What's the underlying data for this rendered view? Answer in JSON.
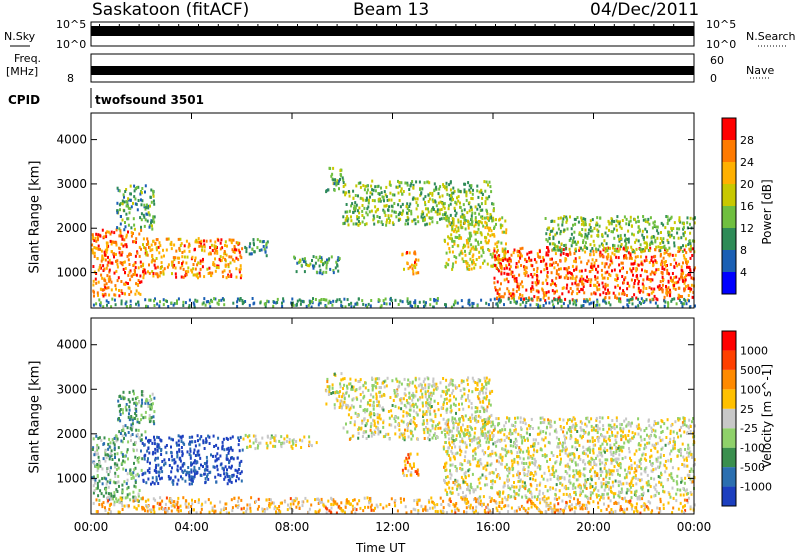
{
  "header": {
    "station": "Saskatoon (fitACF)",
    "beam": "Beam 13",
    "date": "04/Dec/2011"
  },
  "panels": {
    "nsky": {
      "left_label": "N.Sky",
      "right_label": "N.Search",
      "left_ticks": [
        "10^5",
        "10^0"
      ],
      "right_ticks": [
        "10^5",
        "10^0"
      ]
    },
    "freq": {
      "left_label_1": "Freq.",
      "left_label_2": "[MHz]",
      "left_tick": "8",
      "right_label": "Nave",
      "right_ticks": [
        "60",
        "0"
      ]
    },
    "cpid": {
      "label": "CPID",
      "value": "twofsound 3501"
    }
  },
  "colorbars": {
    "power": {
      "title": "Power [dB]",
      "ticks": [
        "28",
        "24",
        "20",
        "16",
        "12",
        "8",
        "4"
      ],
      "colors": [
        "#0000ff",
        "#1a5fb4",
        "#2e8b57",
        "#6fbf3f",
        "#c8c800",
        "#ffb000",
        "#ff7a00",
        "#ff0000"
      ]
    },
    "velocity": {
      "title": "Velocity [m s^-1]",
      "ticks": [
        "1000",
        "500",
        "100",
        "25",
        "-25",
        "-100",
        "-500",
        "-1000"
      ],
      "colors": [
        "#1c3fbf",
        "#2b6fb0",
        "#3a8f4e",
        "#8fd16a",
        "#c8c8c8",
        "#ffc000",
        "#ff8a00",
        "#ff4000",
        "#ff0000"
      ]
    }
  },
  "chart_data": [
    {
      "type": "heatmap",
      "name": "power-panel",
      "ylabel": "Slant Range [km]",
      "yticks": [
        1000,
        2000,
        3000,
        4000
      ],
      "ylim": [
        200,
        4600
      ],
      "xlim": [
        0,
        24
      ],
      "blobs": [
        {
          "t0": 0.0,
          "t1": 2.0,
          "r0": 500,
          "r1": 2000,
          "level": 0.8
        },
        {
          "t0": 2.0,
          "t1": 6.0,
          "r0": 900,
          "r1": 1800,
          "level": 0.75
        },
        {
          "t0": 1.0,
          "t1": 2.5,
          "r0": 2000,
          "r1": 3000,
          "level": 0.35
        },
        {
          "t0": 6.0,
          "t1": 7.0,
          "r0": 1400,
          "r1": 1800,
          "level": 0.3
        },
        {
          "t0": 8.0,
          "t1": 10.0,
          "r0": 1000,
          "r1": 1400,
          "level": 0.35
        },
        {
          "t0": 9.3,
          "t1": 10.0,
          "r0": 2800,
          "r1": 3400,
          "level": 0.4
        },
        {
          "t0": 10.0,
          "t1": 16.0,
          "r0": 2100,
          "r1": 3100,
          "level": 0.45
        },
        {
          "t0": 12.3,
          "t1": 13.0,
          "r0": 1000,
          "r1": 1500,
          "level": 0.75
        },
        {
          "t0": 14.0,
          "t1": 16.5,
          "r0": 1100,
          "r1": 2300,
          "level": 0.55
        },
        {
          "t0": 16.0,
          "t1": 24.0,
          "r0": 400,
          "r1": 1600,
          "level": 0.85
        },
        {
          "t0": 18.0,
          "t1": 24.0,
          "r0": 1500,
          "r1": 2300,
          "level": 0.45
        },
        {
          "t0": 0.0,
          "t1": 24.0,
          "r0": 250,
          "r1": 450,
          "level": 0.3
        }
      ]
    },
    {
      "type": "heatmap",
      "name": "velocity-panel",
      "ylabel": "Slant Range [km]",
      "xlabel": "Time UT",
      "yticks": [
        1000,
        2000,
        3000,
        4000
      ],
      "xticks": [
        "00:00",
        "04:00",
        "08:00",
        "12:00",
        "16:00",
        "20:00",
        "00:00"
      ],
      "ylim": [
        200,
        4600
      ],
      "xlim": [
        0,
        24
      ],
      "blobs": [
        {
          "t0": 0.0,
          "t1": 2.0,
          "r0": 500,
          "r1": 2000,
          "level": 0.35
        },
        {
          "t0": 2.0,
          "t1": 6.0,
          "r0": 900,
          "r1": 2000,
          "level": 0.05
        },
        {
          "t0": 1.0,
          "t1": 2.5,
          "r0": 2000,
          "r1": 3000,
          "level": 0.3
        },
        {
          "t0": 6.0,
          "t1": 9.0,
          "r0": 1700,
          "r1": 2000,
          "level": 0.5
        },
        {
          "t0": 9.3,
          "t1": 10.0,
          "r0": 2600,
          "r1": 3400,
          "level": 0.5
        },
        {
          "t0": 10.0,
          "t1": 16.0,
          "r0": 1900,
          "r1": 3300,
          "level": 0.5
        },
        {
          "t0": 12.3,
          "t1": 13.0,
          "r0": 1000,
          "r1": 1600,
          "level": 0.7
        },
        {
          "t0": 14.0,
          "t1": 24.0,
          "r0": 600,
          "r1": 2400,
          "level": 0.5
        },
        {
          "t0": 0.0,
          "t1": 24.0,
          "r0": 250,
          "r1": 600,
          "level": 0.62
        }
      ]
    }
  ]
}
